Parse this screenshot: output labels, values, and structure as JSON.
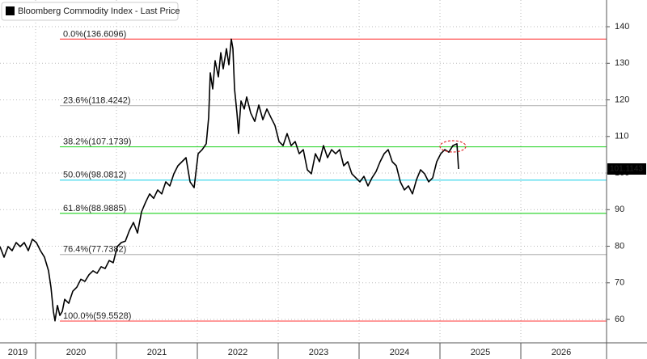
{
  "chart_data": {
    "type": "line",
    "series": [
      {
        "name": "Bloomberg Commodity Index - Last Price",
        "color": "#000000",
        "values": [
          79.9,
          77.0,
          79.9,
          78.8,
          81.0,
          79.9,
          81.0,
          78.8,
          81.9,
          81.0,
          78.8,
          77.0,
          73.3,
          68.8,
          62.2,
          59.6,
          63.8,
          61.1,
          62.2,
          65.5,
          64.4,
          67.7,
          68.8,
          71.0,
          70.4,
          72.2,
          73.3,
          72.6,
          74.4,
          73.9,
          76.1,
          75.5,
          79.9,
          81.0,
          81.4,
          84.3,
          86.5,
          83.6,
          89.4,
          92.0,
          94.3,
          93.1,
          95.4,
          94.3,
          97.6,
          96.5,
          99.8,
          102.0,
          103.1,
          104.2,
          97.6,
          96.0,
          105.3,
          106.4,
          108.0,
          115.2,
          127.4,
          123.0,
          130.7,
          126.3,
          132.9,
          128.5,
          134.0,
          129.6,
          136.6,
          134.0,
          123.0,
          116.4,
          110.8,
          119.7,
          117.5,
          120.8,
          116.4,
          114.1,
          118.6,
          114.6,
          117.5,
          115.2,
          113.0,
          108.6,
          107.5,
          110.8,
          107.5,
          108.6,
          105.3,
          106.4,
          100.9,
          99.8,
          105.3,
          103.1,
          107.5,
          104.2,
          106.4,
          105.3,
          106.4,
          102.0,
          103.1,
          99.8,
          98.7,
          97.6,
          99.1,
          96.5,
          98.7,
          100.4,
          103.1,
          105.3,
          106.4,
          103.1,
          102.0,
          97.6,
          95.4,
          96.5,
          94.3,
          98.2,
          100.9,
          99.8,
          97.6,
          98.7,
          103.1,
          105.3,
          106.4,
          105.7,
          107.5,
          108.0,
          101.1143
        ]
      }
    ],
    "x": [
      2019.56,
      2019.61,
      2019.66,
      2019.71,
      2019.76,
      2019.81,
      2019.86,
      2019.91,
      2019.96,
      2020.01,
      2020.06,
      2020.11,
      2020.16,
      2020.19,
      2020.22,
      2020.24,
      2020.27,
      2020.3,
      2020.33,
      2020.36,
      2020.41,
      2020.46,
      2020.51,
      2020.56,
      2020.61,
      2020.66,
      2020.71,
      2020.76,
      2020.81,
      2020.86,
      2020.91,
      2020.96,
      2021.01,
      2021.06,
      2021.11,
      2021.16,
      2021.21,
      2021.26,
      2021.31,
      2021.36,
      2021.41,
      2021.46,
      2021.51,
      2021.56,
      2021.61,
      2021.66,
      2021.71,
      2021.76,
      2021.81,
      2021.86,
      2021.91,
      2021.96,
      2022.01,
      2022.06,
      2022.11,
      2022.14,
      2022.16,
      2022.19,
      2022.22,
      2022.26,
      2022.29,
      2022.32,
      2022.36,
      2022.39,
      2022.42,
      2022.44,
      2022.46,
      2022.49,
      2022.51,
      2022.54,
      2022.58,
      2022.61,
      2022.66,
      2022.71,
      2022.76,
      2022.81,
      2022.86,
      2022.91,
      2022.96,
      2023.01,
      2023.06,
      2023.11,
      2023.16,
      2023.21,
      2023.26,
      2023.31,
      2023.36,
      2023.41,
      2023.46,
      2023.51,
      2023.56,
      2023.61,
      2023.66,
      2023.71,
      2023.76,
      2023.81,
      2023.86,
      2023.91,
      2023.96,
      2024.01,
      2024.06,
      2024.11,
      2024.16,
      2024.21,
      2024.26,
      2024.31,
      2024.36,
      2024.41,
      2024.46,
      2024.51,
      2024.56,
      2024.61,
      2024.66,
      2024.71,
      2024.76,
      2024.81,
      2024.86,
      2024.91,
      2024.96,
      2025.01,
      2025.06,
      2025.11,
      2025.16,
      2025.21,
      2025.23
    ],
    "xlim": [
      2019.56,
      2027.06
    ],
    "ylim": [
      53.6,
      147.3
    ],
    "xticks": [
      2019,
      2020,
      2021,
      2022,
      2023,
      2024,
      2025,
      2026
    ],
    "yticks": [
      60,
      70,
      80,
      90,
      100,
      110,
      120,
      130,
      140
    ],
    "grid": true,
    "last_price": 101.1143,
    "fib_start_x": 2020.3,
    "fib_levels": [
      {
        "label": "0.0%(136.6096)",
        "value": 136.6096,
        "color": "#ff4d4d"
      },
      {
        "label": "23.6%(118.4242)",
        "value": 118.4242,
        "color": "#b8b8b8"
      },
      {
        "label": "38.2%(107.1739)",
        "value": 107.1739,
        "color": "#33d633"
      },
      {
        "label": "50.0%(98.0812)",
        "value": 98.0812,
        "color": "#3fd8ec"
      },
      {
        "label": "61.8%(88.9885)",
        "value": 88.9885,
        "color": "#33d633"
      },
      {
        "label": "76.4%(77.7382)",
        "value": 77.7382,
        "color": "#b8b8b8"
      },
      {
        "label": "100.0%(59.5528)",
        "value": 59.5528,
        "color": "#ff4d4d"
      }
    ]
  }
}
